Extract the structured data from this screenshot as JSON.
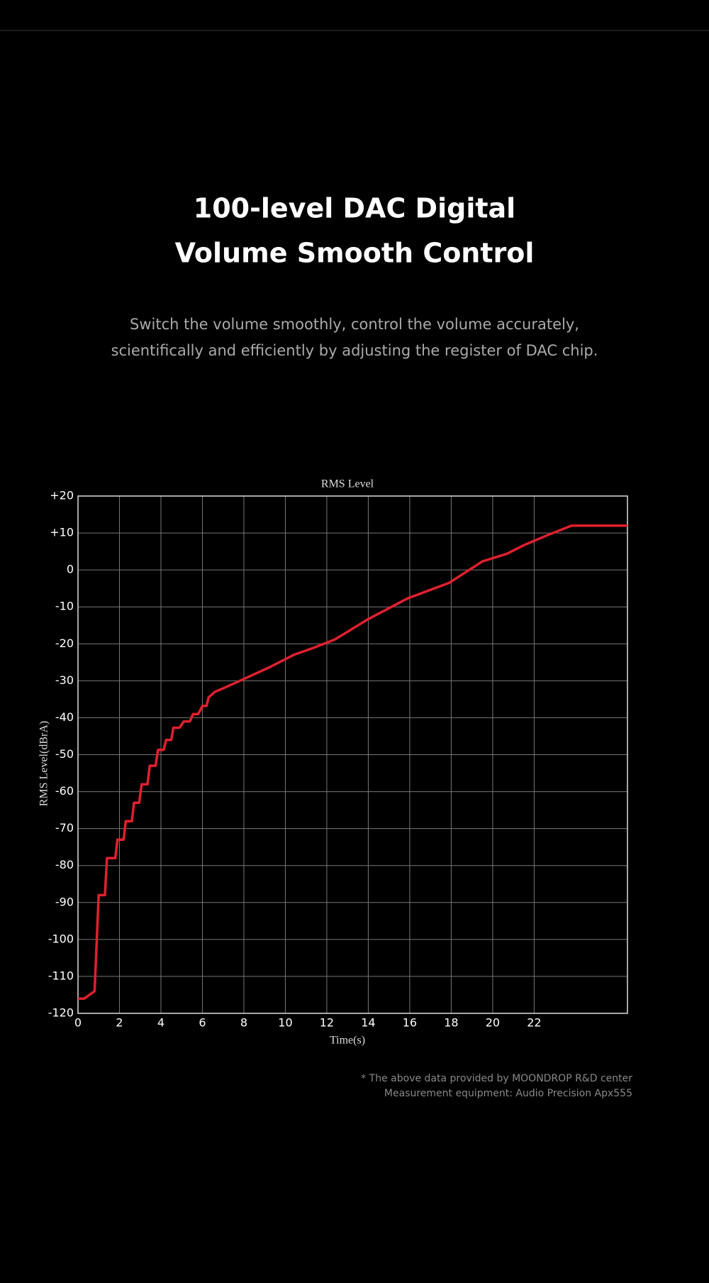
{
  "header": {
    "title_lines": [
      "100-level DAC Digital",
      "Volume Smooth Control"
    ],
    "subtitle_lines": [
      "Switch the volume smoothly, control the volume accurately,",
      "scientifically and efficiently by adjusting the register of DAC chip."
    ]
  },
  "chart_data": {
    "type": "line",
    "title": "RMS Level",
    "x_label": "Time(s)",
    "y_label": "RMS Level(dBrA)",
    "x": [
      0,
      0.3,
      0.8,
      1.0,
      1.3,
      1.4,
      1.8,
      1.9,
      2.2,
      2.3,
      2.6,
      2.7,
      2.95,
      3.07,
      3.35,
      3.46,
      3.74,
      3.86,
      4.13,
      4.25,
      4.5,
      4.6,
      4.9,
      5.1,
      5.4,
      5.55,
      5.8,
      6.0,
      6.2,
      6.3,
      6.6,
      6.9,
      8.0,
      9.25,
      10.4,
      11.4,
      12.4,
      14.0,
      15.9,
      17.9,
      19.5,
      20.7,
      21.5,
      22.6,
      23.8,
      26.5
    ],
    "values": [
      -116,
      -116,
      -114,
      -88,
      -88,
      -78,
      -78,
      -73,
      -73,
      -68,
      -68,
      -63,
      -63,
      -58,
      -58,
      -53,
      -53,
      -48.7,
      -48.7,
      -46,
      -46,
      -42.7,
      -42.7,
      -41,
      -41,
      -39,
      -39,
      -36.8,
      -36.8,
      -34.5,
      -33,
      -32.3,
      -29.5,
      -26.3,
      -23,
      -21,
      -18.8,
      -13.3,
      -7.7,
      -3.5,
      2.3,
      4.4,
      6.7,
      9.3,
      12,
      12
    ],
    "color": "#e0202e",
    "xlim": [
      0,
      26.5
    ],
    "xticks": [
      0,
      2,
      4,
      6,
      8,
      10,
      12,
      14,
      16,
      18,
      20,
      22
    ],
    "ylim": [
      -120,
      20
    ],
    "yticks": [
      {
        "value": 20,
        "label": "+20"
      },
      {
        "value": 10,
        "label": "+10"
      },
      0,
      -10,
      -20,
      -30,
      -40,
      -50,
      -60,
      -70,
      -80,
      -90,
      -100,
      -110,
      -120
    ],
    "grid": true
  },
  "footnote_lines": [
    "* The above data provided by MOONDROP R&D center",
    "Measurement equipment: Audio Precision Apx555"
  ]
}
